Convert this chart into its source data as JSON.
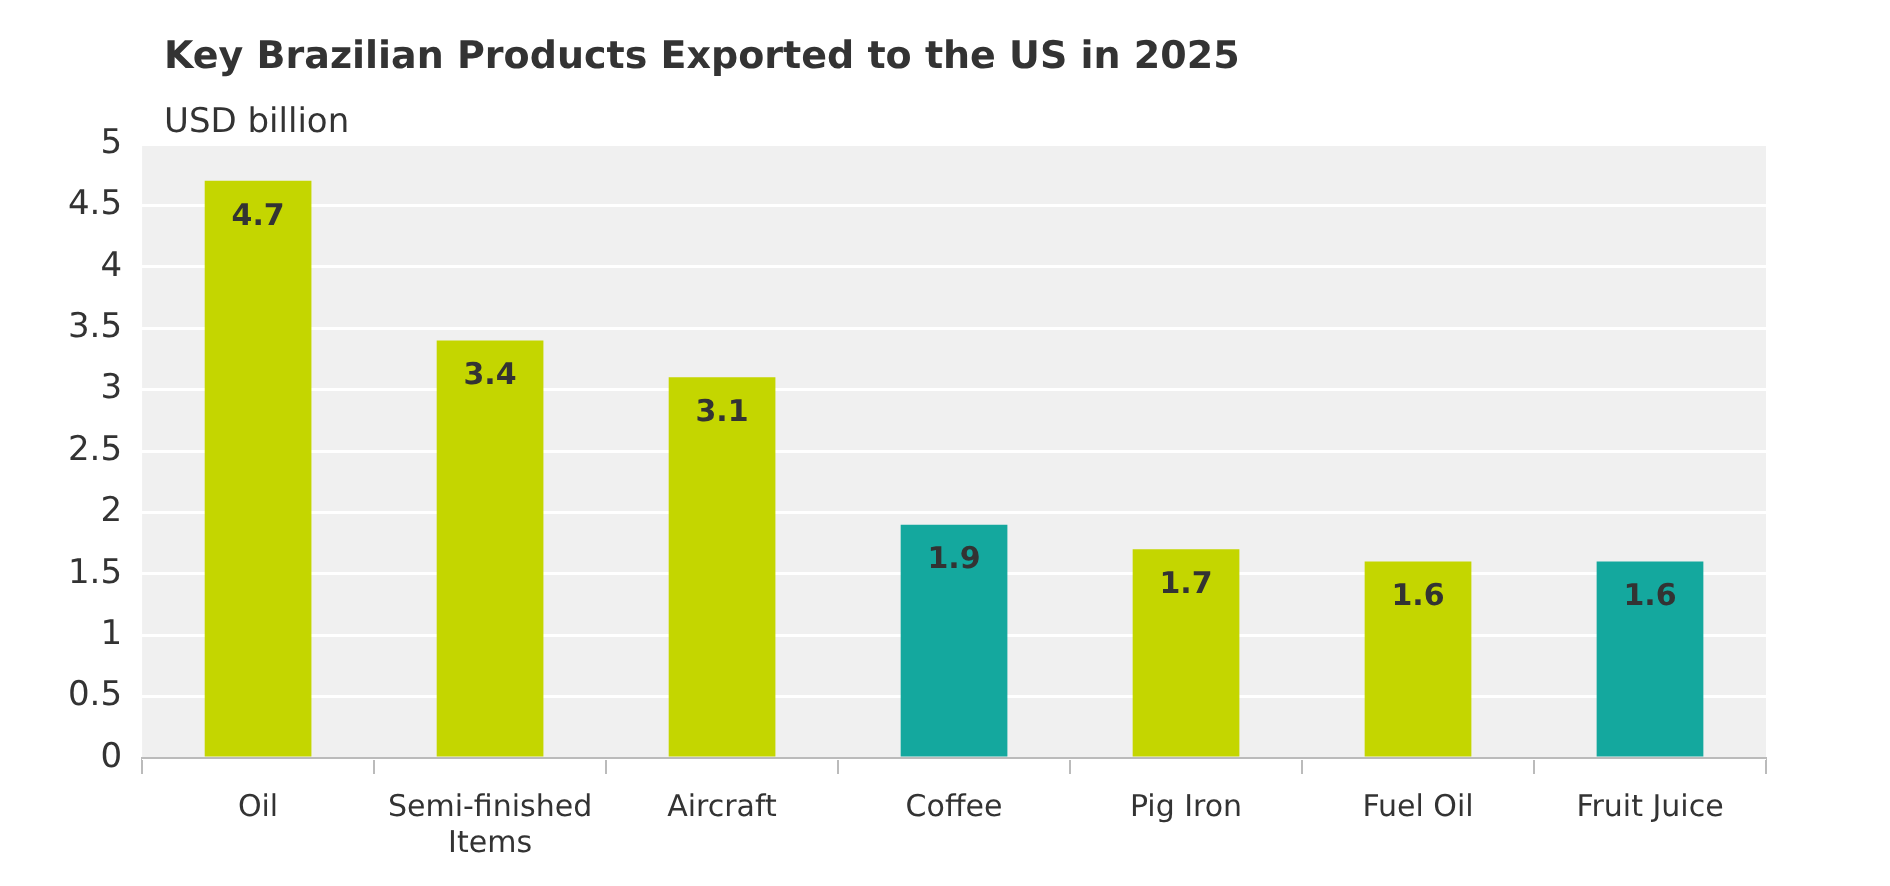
{
  "chart_data": {
    "type": "bar",
    "title": "Key Brazilian Products Exported to the US in 2025",
    "ylabel": "USD billion",
    "categories": [
      "Oil",
      "Semi-finished Items",
      "Aircraft",
      "Coffee",
      "Pig Iron",
      "Fuel Oil",
      "Fruit Juice"
    ],
    "values": [
      4.7,
      3.4,
      3.1,
      1.9,
      1.7,
      1.6,
      1.6
    ],
    "colors": [
      "#c4d600",
      "#c4d600",
      "#c4d600",
      "#14a89e",
      "#c4d600",
      "#c4d600",
      "#14a89e"
    ],
    "ylim": [
      0,
      5
    ],
    "yticks": [
      0,
      0.5,
      1,
      1.5,
      2,
      2.5,
      3,
      3.5,
      4,
      4.5,
      5
    ],
    "grid": "y",
    "data_labels": true
  }
}
